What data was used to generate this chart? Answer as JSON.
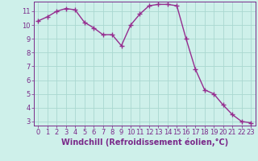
{
  "x": [
    0,
    1,
    2,
    3,
    4,
    5,
    6,
    7,
    8,
    9,
    10,
    11,
    12,
    13,
    14,
    15,
    16,
    17,
    18,
    19,
    20,
    21,
    22,
    23
  ],
  "y": [
    10.3,
    10.6,
    11.0,
    11.2,
    11.1,
    10.2,
    9.8,
    9.3,
    9.3,
    8.5,
    10.0,
    10.8,
    11.4,
    11.5,
    11.5,
    11.4,
    9.0,
    6.8,
    5.3,
    5.0,
    4.2,
    3.5,
    3.0,
    2.9
  ],
  "line_color": "#952d8f",
  "marker": "+",
  "marker_size": 4,
  "marker_lw": 1.0,
  "bg_color": "#cef0ea",
  "grid_color": "#aad8d0",
  "xlabel": "Windchill (Refroidissement éolien,°C)",
  "ylim_min": 2.7,
  "ylim_max": 11.7,
  "xlim_min": -0.5,
  "xlim_max": 23.5,
  "yticks": [
    3,
    4,
    5,
    6,
    7,
    8,
    9,
    10,
    11
  ],
  "xticks": [
    0,
    1,
    2,
    3,
    4,
    5,
    6,
    7,
    8,
    9,
    10,
    11,
    12,
    13,
    14,
    15,
    16,
    17,
    18,
    19,
    20,
    21,
    22,
    23
  ],
  "tick_fontsize": 6,
  "xlabel_fontsize": 7,
  "text_color": "#7a2a8a",
  "line_width": 1.0
}
